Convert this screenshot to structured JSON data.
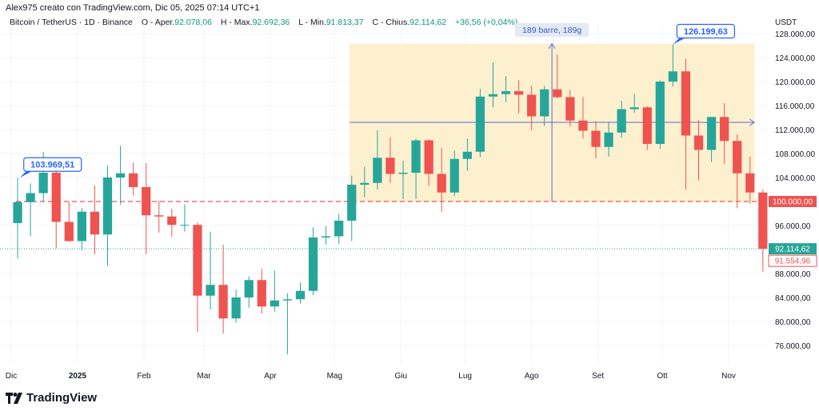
{
  "header": {
    "attribution": "Alex975 creato con TradingView.com, Dic 05, 2025 07:14 UTC+1",
    "symbol": "Bitcoin / TetherUS · 1D · Binance",
    "open_label": "O - Aper.",
    "open": "92.078,06",
    "high_label": "H - Max.",
    "high": "92.692,36",
    "low_label": "L - Min.",
    "low": "91.813,37",
    "close_label": "C - Chius.",
    "close": "92.114,62",
    "change": "+36,56 (+0,04%)"
  },
  "logo": {
    "text": "TradingView"
  },
  "colors": {
    "up": "#26a69a",
    "down": "#ef5350",
    "range_fill": "#fdf0cf",
    "tool_line": "#5b6bd6",
    "callout": "#2962ff",
    "level": "#ef5350"
  },
  "chart_data": {
    "type": "candlestick",
    "currency": "USDT",
    "ylim": [
      74000,
      130000
    ],
    "y_ticks": [
      {
        "value": 128000,
        "label": "128.000,00"
      },
      {
        "value": 124000,
        "label": "124.000,00"
      },
      {
        "value": 120000,
        "label": "120.000,00"
      },
      {
        "value": 116000,
        "label": "116.000,00"
      },
      {
        "value": 112000,
        "label": "112.000,00"
      },
      {
        "value": 108000,
        "label": "108.000,00"
      },
      {
        "value": 104000,
        "label": "104.000,00"
      },
      {
        "value": 96000,
        "label": "96.000,00"
      },
      {
        "value": 88000,
        "label": "88.000,00"
      },
      {
        "value": 84000,
        "label": "84.000,00"
      },
      {
        "value": 80000,
        "label": "80.000,00"
      },
      {
        "value": 76000,
        "label": "76.000,00"
      }
    ],
    "x_ticks": [
      {
        "date": "2024-12-01",
        "label": "Dic",
        "bold": false
      },
      {
        "date": "2025-01-01",
        "label": "2025",
        "bold": true
      },
      {
        "date": "2025-02-01",
        "label": "Feb",
        "bold": false
      },
      {
        "date": "2025-03-01",
        "label": "Mar",
        "bold": false
      },
      {
        "date": "2025-04-01",
        "label": "Apr",
        "bold": false
      },
      {
        "date": "2025-05-01",
        "label": "Mag",
        "bold": false
      },
      {
        "date": "2025-06-01",
        "label": "Giu",
        "bold": false
      },
      {
        "date": "2025-07-01",
        "label": "Lug",
        "bold": false
      },
      {
        "date": "2025-08-01",
        "label": "Ago",
        "bold": false
      },
      {
        "date": "2025-09-01",
        "label": "Set",
        "bold": false
      },
      {
        "date": "2025-10-01",
        "label": "Ott",
        "bold": false
      },
      {
        "date": "2025-11-01",
        "label": "Nov",
        "bold": false
      }
    ],
    "candle_start": "2024-12-01",
    "candle_days": 6,
    "candles_ohlc": [
      [
        96400,
        103970,
        90500,
        99900
      ],
      [
        99900,
        103000,
        94200,
        101400
      ],
      [
        101400,
        108300,
        100000,
        104800
      ],
      [
        104800,
        105000,
        92200,
        96600
      ],
      [
        96600,
        99900,
        93300,
        93400
      ],
      [
        93400,
        98900,
        91800,
        98300
      ],
      [
        98300,
        102700,
        91200,
        94500
      ],
      [
        94500,
        106000,
        89300,
        104000
      ],
      [
        104000,
        109300,
        99500,
        104700
      ],
      [
        104700,
        106500,
        101000,
        102400
      ],
      [
        102400,
        106400,
        91200,
        97700
      ],
      [
        97700,
        100100,
        94800,
        97500
      ],
      [
        97500,
        98800,
        94100,
        96100
      ],
      [
        96100,
        99500,
        95000,
        96100
      ],
      [
        96100,
        96500,
        78200,
        84300
      ],
      [
        84300,
        95000,
        82000,
        86100
      ],
      [
        86100,
        92800,
        78000,
        80500
      ],
      [
        80500,
        85300,
        79800,
        84000
      ],
      [
        84000,
        87500,
        82300,
        86900
      ],
      [
        86900,
        88800,
        81300,
        82500
      ],
      [
        82500,
        88500,
        81600,
        83500
      ],
      [
        83500,
        84700,
        74500,
        83700
      ],
      [
        83700,
        86500,
        83000,
        85100
      ],
      [
        85100,
        95700,
        84400,
        94000
      ],
      [
        94000,
        95900,
        92800,
        94200
      ],
      [
        94200,
        97900,
        92900,
        96800
      ],
      [
        96800,
        104300,
        93400,
        102800
      ],
      [
        102800,
        105800,
        100700,
        103100
      ],
      [
        103100,
        111900,
        102000,
        107300
      ],
      [
        107300,
        110700,
        103100,
        104600
      ],
      [
        104600,
        106800,
        100400,
        104800
      ],
      [
        104800,
        110500,
        100400,
        110200
      ],
      [
        110200,
        110400,
        102600,
        104600
      ],
      [
        104600,
        108900,
        98200,
        101500
      ],
      [
        101500,
        108500,
        100900,
        107100
      ],
      [
        107100,
        110500,
        105100,
        108300
      ],
      [
        108300,
        118800,
        107400,
        117500
      ],
      [
        117500,
        123200,
        115700,
        117900
      ],
      [
        117900,
        120900,
        116600,
        118400
      ],
      [
        118400,
        120200,
        114700,
        117800
      ],
      [
        117800,
        119300,
        111900,
        114200
      ],
      [
        114200,
        119300,
        112600,
        118700
      ],
      [
        118700,
        124500,
        117200,
        117400
      ],
      [
        117400,
        118600,
        112500,
        113500
      ],
      [
        113500,
        117400,
        110500,
        111800
      ],
      [
        111800,
        113400,
        107200,
        109100
      ],
      [
        109100,
        113300,
        107500,
        111500
      ],
      [
        111500,
        116800,
        110600,
        115400
      ],
      [
        115400,
        117900,
        114800,
        115700
      ],
      [
        115700,
        115900,
        108600,
        109600
      ],
      [
        109600,
        120200,
        108800,
        120000
      ],
      [
        120000,
        126200,
        119200,
        121700
      ],
      [
        121700,
        123800,
        102000,
        111000
      ],
      [
        111000,
        113600,
        103500,
        108600
      ],
      [
        108600,
        114000,
        106600,
        114100
      ],
      [
        114100,
        116400,
        106300,
        110100
      ],
      [
        110100,
        111200,
        98900,
        104700
      ],
      [
        104700,
        107500,
        99600,
        101500
      ],
      [
        101500,
        102000,
        88300,
        92114.62
      ]
    ],
    "level_line": {
      "value": 100000,
      "label": "100.000,00",
      "style": "dashed"
    },
    "last_price": {
      "value": 92114.62,
      "label": "92.114,62"
    },
    "secondary_price": {
      "value": 91554.96,
      "label": "91.554,96"
    },
    "callouts": [
      {
        "date": "2024-12-05",
        "value": 103969.51,
        "label": "103.969,51"
      },
      {
        "date": "2025-10-06",
        "value": 126199.63,
        "label": "126.199,63"
      }
    ],
    "date_price_range": {
      "start_date": "2025-05-08",
      "end_date": "2025-11-13",
      "top": 126300,
      "bottom": 100000,
      "mid": 113200,
      "label": "189 barre, 189g"
    }
  }
}
